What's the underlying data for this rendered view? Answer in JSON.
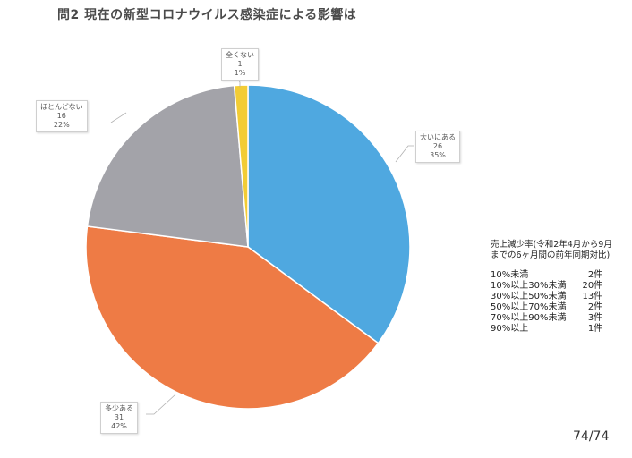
{
  "title": "問2  現在の新型コロナウイルス感染症による影響は",
  "chart_data": {
    "type": "pie",
    "title": "問2  現在の新型コロナウイルス感染症による影響は",
    "slices": [
      {
        "label": "大いにある",
        "value": 26,
        "pct": "35%",
        "color": "#4FA8E0"
      },
      {
        "label": "多少ある",
        "value": 31,
        "pct": "42%",
        "color": "#EE7B45"
      },
      {
        "label": "ほとんどない",
        "value": 16,
        "pct": "22%",
        "color": "#A3A3A9"
      },
      {
        "label": "全くない",
        "value": 1,
        "pct": "1%",
        "color": "#F2CC35"
      }
    ]
  },
  "labels": [
    {
      "name": "大いにある",
      "count": "26",
      "pct": "35%"
    },
    {
      "name": "多少ある",
      "count": "31",
      "pct": "42%"
    },
    {
      "name": "ほとんどない",
      "count": "16",
      "pct": "22%"
    },
    {
      "name": "全くない",
      "count": "1",
      "pct": "1%"
    }
  ],
  "side_note": {
    "heading": [
      "売上減少率(令和2年4月から9月",
      "までの6ヶ月間の前年同期対比)"
    ],
    "rows": [
      {
        "label": "10%未満",
        "count": "2件"
      },
      {
        "label": "10%以上30%未満",
        "count": "20件"
      },
      {
        "label": "30%以上50%未満",
        "count": "13件"
      },
      {
        "label": "50%以上70%未満",
        "count": "2件"
      },
      {
        "label": "70%以上90%未満",
        "count": "3件"
      },
      {
        "label": "90%以上",
        "count": "1件"
      }
    ]
  },
  "page_number": "74/74"
}
